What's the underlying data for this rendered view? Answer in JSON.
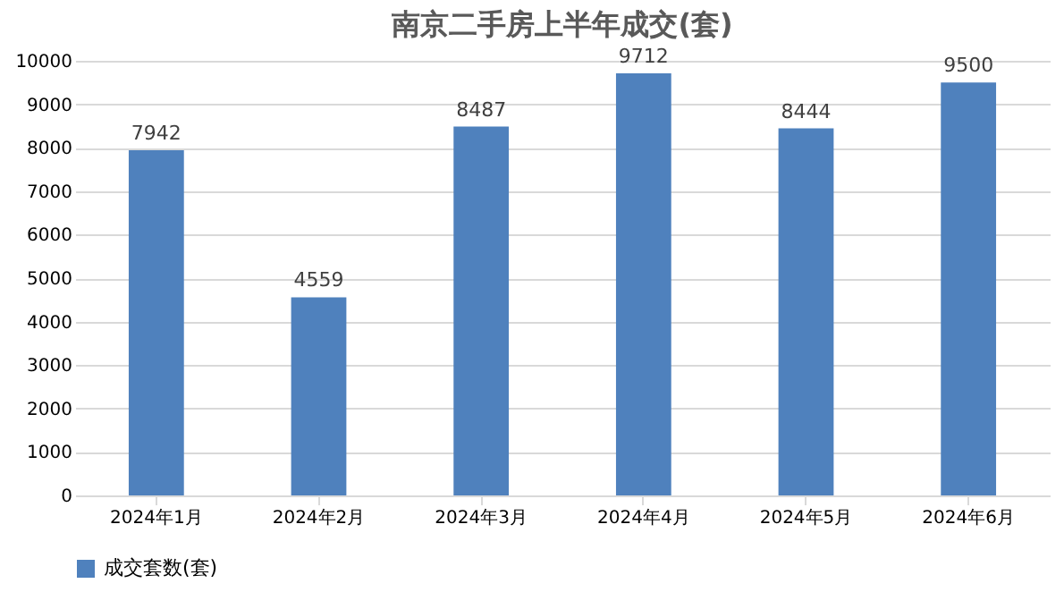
{
  "chart_data": {
    "type": "bar",
    "title": "南京二手房上半年成交(套)",
    "categories": [
      "2024年1月",
      "2024年2月",
      "2024年3月",
      "2024年4月",
      "2024年5月",
      "2024年6月"
    ],
    "series": [
      {
        "name": "成交套数(套)",
        "color": "#4f81bd",
        "values": [
          7942,
          4559,
          8487,
          9712,
          8444,
          9500
        ]
      }
    ],
    "ylim": [
      0,
      10000
    ],
    "yticks": [
      0,
      1000,
      2000,
      3000,
      4000,
      5000,
      6000,
      7000,
      8000,
      9000,
      10000
    ],
    "grid": "y",
    "legend": "bottom",
    "data_labels": true
  }
}
